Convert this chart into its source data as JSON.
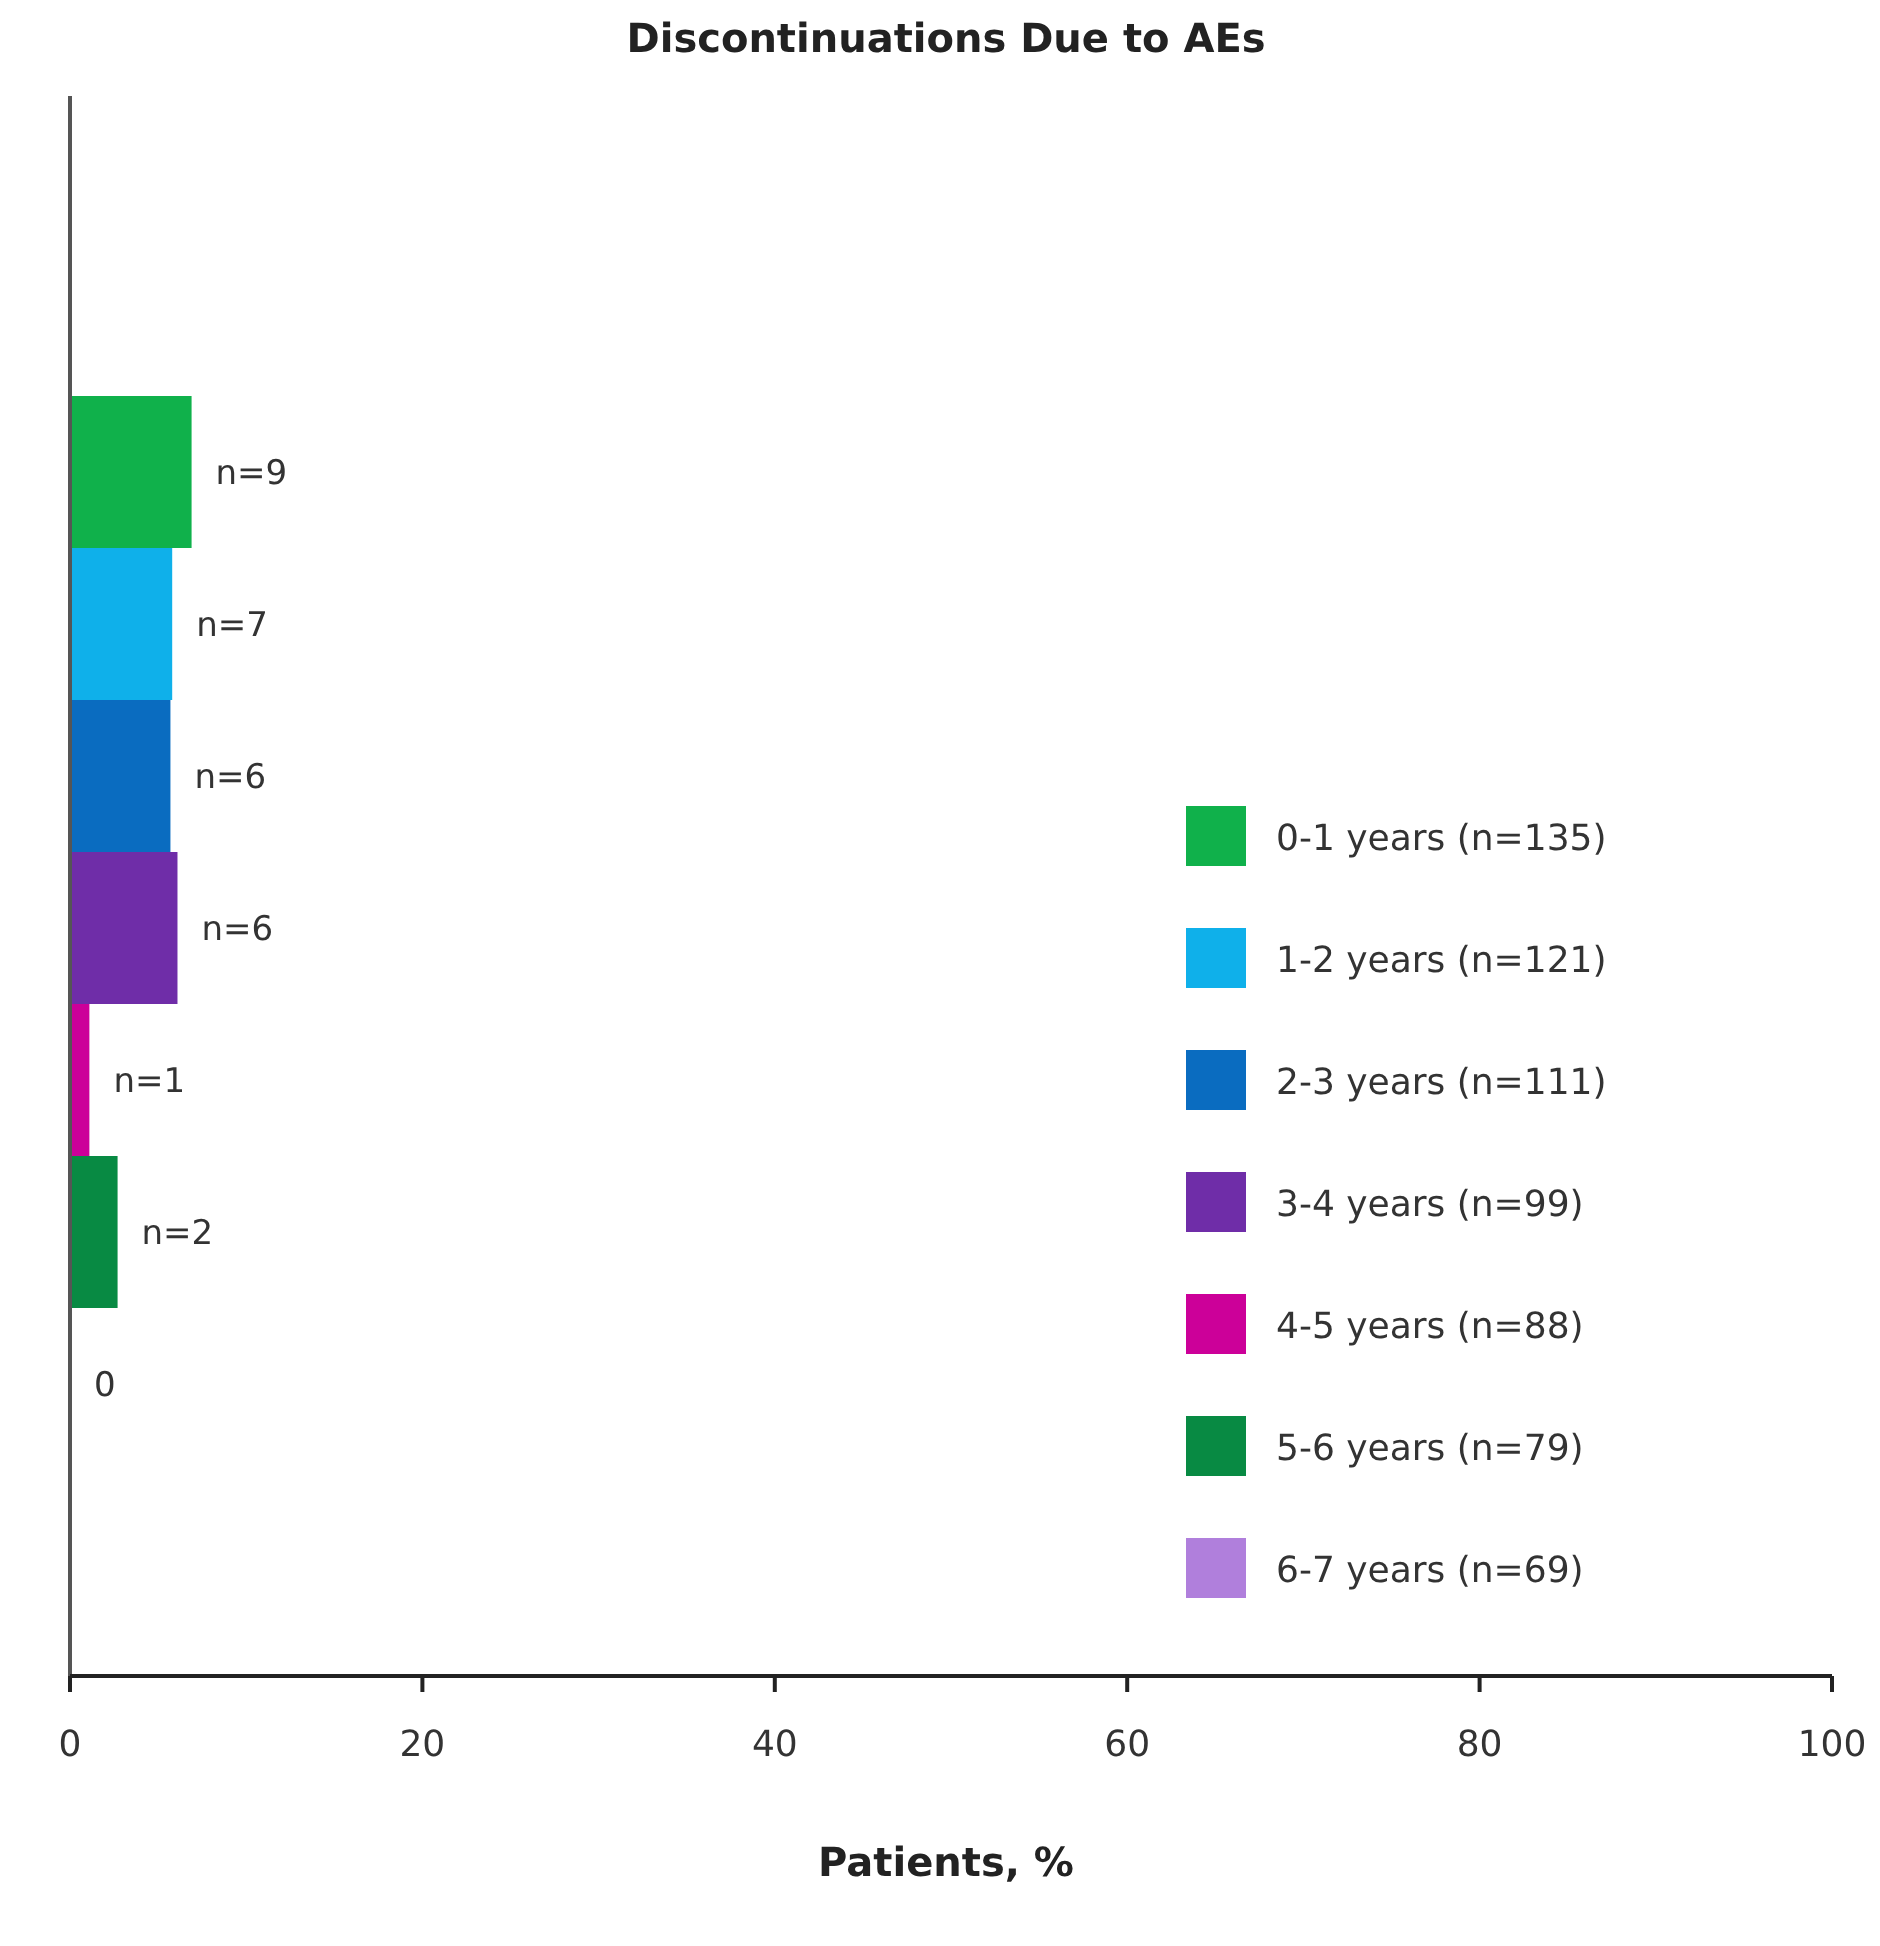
{
  "chart_data": {
    "type": "bar",
    "orientation": "horizontal",
    "title": "Discontinuations Due to AEs",
    "xlabel": "Patients, %",
    "categories": [
      null
    ],
    "xlim": [
      0,
      100
    ],
    "xticks": [
      0,
      20,
      40,
      60,
      80,
      100
    ],
    "legend": "right",
    "annotations": [
      "n=9",
      "n=7",
      "n=6",
      "n=6",
      "n=1",
      "n=2",
      "0"
    ],
    "series": [
      {
        "name": "0-1 years (n=135)",
        "color": "#10b14b",
        "values": [
          6.9
        ]
      },
      {
        "name": "1-2 years (n=121)",
        "color": "#0fb0ea",
        "values": [
          5.8
        ]
      },
      {
        "name": "2-3 years (n=111)",
        "color": "#0a6cc0",
        "values": [
          5.7
        ]
      },
      {
        "name": "3-4 years (n=99)",
        "color": "#6f2da8",
        "values": [
          6.1
        ]
      },
      {
        "name": "4-5 years (n=88)",
        "color": "#cc0099",
        "values": [
          1.1
        ]
      },
      {
        "name": "5-6 years (n=79)",
        "color": "#088a43",
        "values": [
          2.7
        ]
      },
      {
        "name": "6-7 years (n=69)",
        "color": "#b07fdc",
        "values": [
          0
        ]
      }
    ]
  }
}
